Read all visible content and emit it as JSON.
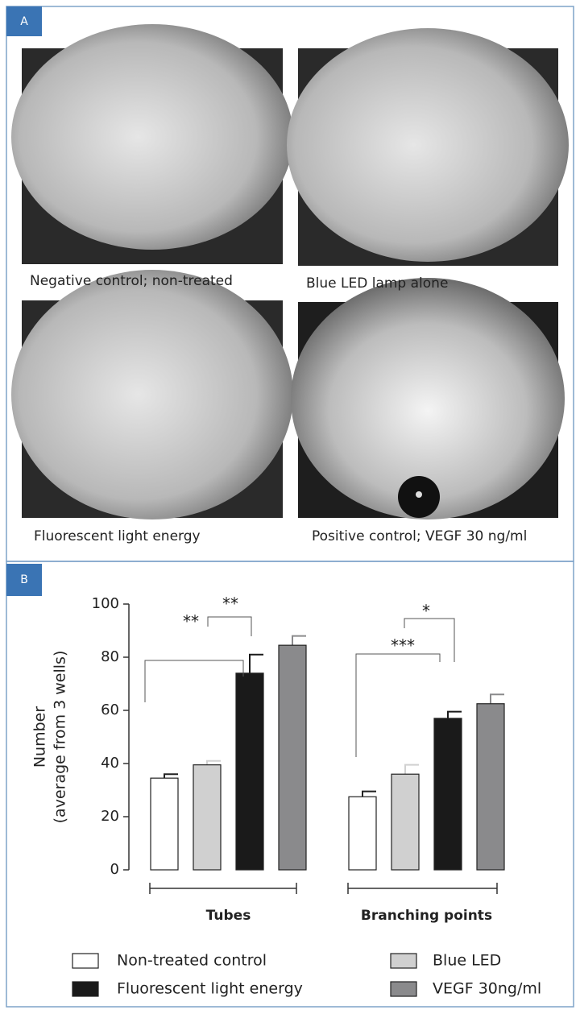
{
  "panel_a": {
    "label": "A",
    "captions": [
      "Negative control; non-treated",
      "Blue LED lamp alone",
      "Fluorescent light energy",
      "Positive control; VEGF 30 ng/ml"
    ]
  },
  "chart_data": {
    "type": "bar",
    "panel_label": "B",
    "y_label": [
      "Number",
      "(average from 3 wells)"
    ],
    "categories": [
      "Tubes",
      "Branching points"
    ],
    "series": [
      {
        "name": "Non-treated control",
        "color": "#ffffff",
        "values": [
          34.5,
          27.5
        ],
        "errors": [
          1.5,
          2
        ]
      },
      {
        "name": "Blue LED",
        "color": "#d0d0d0",
        "values": [
          39.5,
          36
        ],
        "errors": [
          1.5,
          3.5
        ]
      },
      {
        "name": "Fluorescent light energy",
        "color": "#1a1a1a",
        "values": [
          74,
          57
        ],
        "errors": [
          7,
          2.5
        ]
      },
      {
        "name": "VEGF 30ng/ml",
        "color": "#8a8a8c",
        "values": [
          84.5,
          62.5
        ],
        "errors": [
          3.5,
          3.5
        ]
      }
    ],
    "ylim": [
      0,
      100
    ],
    "yticks": [
      0,
      20,
      40,
      60,
      80,
      100
    ],
    "annotations": [
      "**",
      "**",
      "***",
      "*"
    ]
  }
}
